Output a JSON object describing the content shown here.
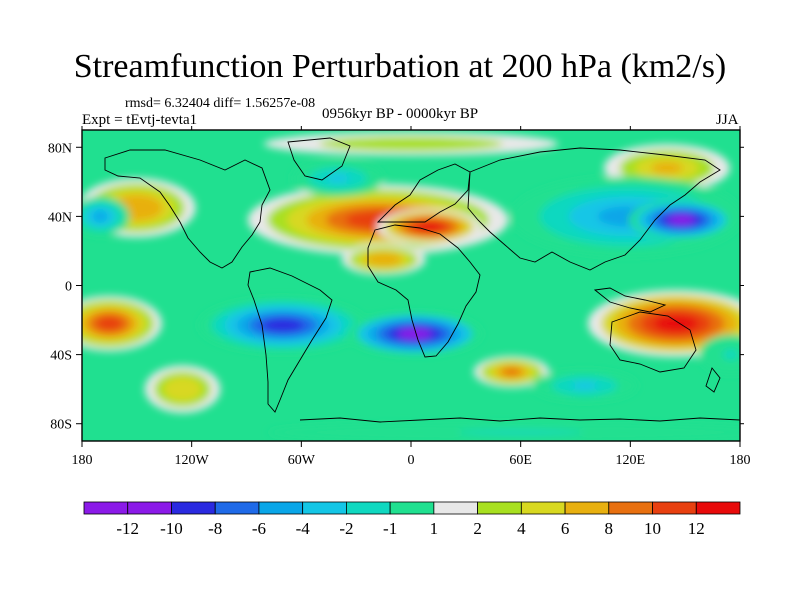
{
  "chart_data": {
    "type": "heatmap",
    "title": "Streamfunction Perturbation at 200 hPa (km2/s)",
    "stats": "rmsd= 6.32404 diff= 1.56257e-08",
    "experiment": "Expt = tEvtj-tevta1",
    "period": "0956kyr BP - 0000kyr BP",
    "season": "JJA",
    "projection": "cylindrical equidistant world map with coastlines",
    "x_axis": {
      "range": [
        -180,
        180
      ],
      "tick_values": [
        -180,
        -120,
        -60,
        0,
        60,
        120,
        180
      ],
      "tick_labels": [
        "180",
        "120W",
        "60W",
        "0",
        "60E",
        "120E",
        "180"
      ]
    },
    "y_axis": {
      "range": [
        -90,
        90
      ],
      "tick_values": [
        80,
        40,
        0,
        -40,
        -80
      ],
      "tick_labels": [
        "80N",
        "40N",
        "0",
        "40S",
        "80S"
      ]
    },
    "colorbar": {
      "labels": [
        "-12",
        "-10",
        "-8",
        "-6",
        "-4",
        "-2",
        "-1",
        "1",
        "2",
        "4",
        "6",
        "8",
        "10",
        "12"
      ],
      "colors": [
        "#8b1ae8",
        "#2a2ae0",
        "#1f6ae8",
        "#0aa6e8",
        "#14c6e6",
        "#10d8c0",
        "#20e090",
        "#e8e8e8",
        "#a8e020",
        "#d8d820",
        "#e8b010",
        "#e87010",
        "#e84010",
        "#e80a0a"
      ]
    },
    "features": [
      {
        "label": "N Pacific anticyclone",
        "lon": -150,
        "lat": 45,
        "value": 7,
        "rx_deg": 28,
        "ry_deg": 15
      },
      {
        "label": "Subtropical N Atlantic / Africa ridge",
        "lon": -18,
        "lat": 38,
        "value": 11,
        "rx_deg": 62,
        "ry_deg": 18
      },
      {
        "label": "N Africa core",
        "lon": 10,
        "lat": 34,
        "value": 12,
        "rx_deg": 25,
        "ry_deg": 9
      },
      {
        "label": "Arctic high",
        "lon": 0,
        "lat": 82,
        "value": 3,
        "rx_deg": 70,
        "ry_deg": 6
      },
      {
        "label": "Central Asia high",
        "lon": 140,
        "lat": 68,
        "value": 6,
        "rx_deg": 30,
        "ry_deg": 12
      },
      {
        "label": "Asian trough",
        "lon": 118,
        "lat": 40,
        "value": -6,
        "rx_deg": 55,
        "ry_deg": 20
      },
      {
        "label": "W Pacific low core",
        "lon": 148,
        "lat": 38,
        "value": -12,
        "rx_deg": 25,
        "ry_deg": 10
      },
      {
        "label": "Eastern Pacific low",
        "lon": -170,
        "lat": 40,
        "value": -5,
        "rx_deg": 14,
        "ry_deg": 10
      },
      {
        "label": "S Pacific high",
        "lon": -165,
        "lat": -22,
        "value": 11,
        "rx_deg": 25,
        "ry_deg": 14
      },
      {
        "label": "South American trough",
        "lon": -70,
        "lat": -23,
        "value": -9,
        "rx_deg": 40,
        "ry_deg": 14
      },
      {
        "label": "S Atlantic trough",
        "lon": 2,
        "lat": -28,
        "value": -11,
        "rx_deg": 32,
        "ry_deg": 11
      },
      {
        "label": "Australian high",
        "lon": 145,
        "lat": -22,
        "value": 12,
        "rx_deg": 42,
        "ry_deg": 17
      },
      {
        "label": "Indian Ocean high",
        "lon": 55,
        "lat": -50,
        "value": 8,
        "rx_deg": 18,
        "ry_deg": 8
      },
      {
        "label": "S Indian Ocean low",
        "lon": 95,
        "lat": -58,
        "value": -4,
        "rx_deg": 25,
        "ry_deg": 8
      },
      {
        "label": "SE Pacific high",
        "lon": -125,
        "lat": -60,
        "value": 5,
        "rx_deg": 18,
        "ry_deg": 12
      },
      {
        "label": "Antarctic low",
        "lon": 60,
        "lat": -85,
        "value": -2,
        "rx_deg": 120,
        "ry_deg": 5
      },
      {
        "label": "N Atlantic low",
        "lon": -40,
        "lat": 62,
        "value": -3,
        "rx_deg": 22,
        "ry_deg": 9
      },
      {
        "label": "N Africa ring",
        "lon": -15,
        "lat": 15,
        "value": 7,
        "rx_deg": 20,
        "ry_deg": 8
      },
      {
        "label": "E Pacific trough",
        "lon": 175,
        "lat": -40,
        "value": -2,
        "rx_deg": 15,
        "ry_deg": 10
      }
    ]
  }
}
